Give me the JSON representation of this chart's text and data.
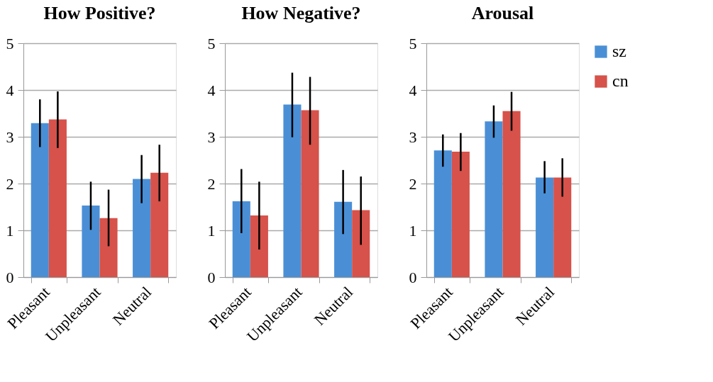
{
  "chart_data": [
    {
      "type": "bar",
      "title": "How Positive?",
      "categories": [
        "Pleasant",
        "Unpleasant",
        "Neutral"
      ],
      "ylim": [
        0,
        5
      ],
      "yticks": [
        0,
        1,
        2,
        3,
        4,
        5
      ],
      "grid": "y",
      "legend": "right",
      "series": [
        {
          "name": "sz",
          "color": "#4a8fd6",
          "values": [
            3.29,
            1.53,
            2.1
          ],
          "errors": [
            [
              2.78,
              3.8
            ],
            [
              1.01,
              2.04
            ],
            [
              1.58,
              2.61
            ]
          ]
        },
        {
          "name": "cn",
          "color": "#d6524a",
          "values": [
            3.37,
            1.26,
            2.23
          ],
          "errors": [
            [
              2.76,
              3.97
            ],
            [
              0.66,
              1.87
            ],
            [
              1.62,
              2.83
            ]
          ]
        }
      ]
    },
    {
      "type": "bar",
      "title": "How Negative?",
      "categories": [
        "Pleasant",
        "Unpleasant",
        "Neutral"
      ],
      "ylim": [
        0,
        5
      ],
      "yticks": [
        0,
        1,
        2,
        3,
        4,
        5
      ],
      "grid": "y",
      "legend": "right",
      "series": [
        {
          "name": "sz",
          "color": "#4a8fd6",
          "values": [
            1.62,
            3.69,
            1.61
          ],
          "errors": [
            [
              0.94,
              2.31
            ],
            [
              2.99,
              4.37
            ],
            [
              0.92,
              2.29
            ]
          ]
        },
        {
          "name": "cn",
          "color": "#d6524a",
          "values": [
            1.32,
            3.57,
            1.43
          ],
          "errors": [
            [
              0.59,
              2.04
            ],
            [
              2.83,
              4.28
            ],
            [
              0.69,
              2.15
            ]
          ]
        }
      ]
    },
    {
      "type": "bar",
      "title": "Arousal",
      "categories": [
        "Pleasant",
        "Unpleasant",
        "Neutral"
      ],
      "ylim": [
        0,
        5
      ],
      "yticks": [
        0,
        1,
        2,
        3,
        4,
        5
      ],
      "grid": "y",
      "legend": "right",
      "series": [
        {
          "name": "sz",
          "color": "#4a8fd6",
          "values": [
            2.71,
            3.33,
            2.13
          ],
          "errors": [
            [
              2.36,
              3.05
            ],
            [
              2.98,
              3.67
            ],
            [
              1.79,
              2.48
            ]
          ]
        },
        {
          "name": "cn",
          "color": "#d6524a",
          "values": [
            2.68,
            3.55,
            2.13
          ],
          "errors": [
            [
              2.27,
              3.08
            ],
            [
              3.13,
              3.96
            ],
            [
              1.72,
              2.54
            ]
          ]
        }
      ]
    }
  ]
}
